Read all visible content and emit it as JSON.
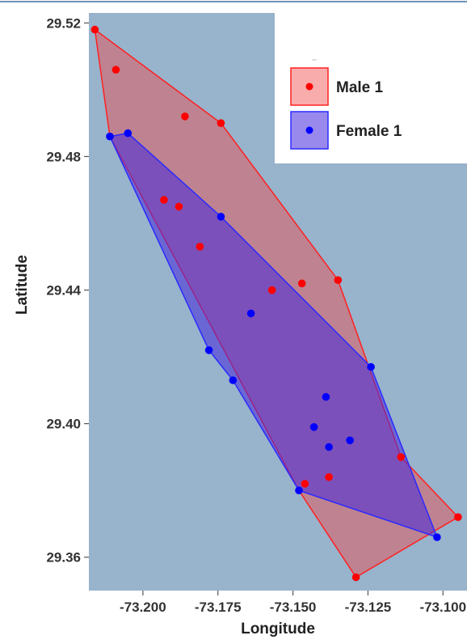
{
  "chart_data": {
    "type": "scatter",
    "xlabel": "Longitude",
    "ylabel": "Latitude",
    "xlim": [
      -73.218,
      -73.092
    ],
    "ylim": [
      29.35,
      29.523
    ],
    "x_ticks": [
      -73.2,
      -73.175,
      -73.15,
      -73.125,
      -73.1
    ],
    "x_tick_labels": [
      "-73.200",
      "-73.175",
      "-73.150",
      "-73.125",
      "-73.100"
    ],
    "y_ticks": [
      29.36,
      29.4,
      29.44,
      29.48,
      29.52
    ],
    "y_tick_labels": [
      "29.36",
      "29.40",
      "29.44",
      "29.48",
      "29.52"
    ],
    "grid": false,
    "legend_position": "top-right",
    "colors": {
      "panel_background": "#98b3cc",
      "male_point": "#ff0000",
      "male_hull_fill": "rgba(240,70,70,0.45)",
      "male_hull_stroke": "#ff2020",
      "female_point": "#0000ff",
      "female_hull_fill": "rgba(70,40,220,0.55)",
      "female_hull_stroke": "#2a2aff"
    },
    "series": [
      {
        "name": "Male 1",
        "color": "#ff0000",
        "points": [
          [
            -73.216,
            29.518
          ],
          [
            -73.209,
            29.506
          ],
          [
            -73.186,
            29.492
          ],
          [
            -73.174,
            29.49
          ],
          [
            -73.193,
            29.467
          ],
          [
            -73.188,
            29.465
          ],
          [
            -73.181,
            29.453
          ],
          [
            -73.157,
            29.44
          ],
          [
            -73.147,
            29.442
          ],
          [
            -73.135,
            29.443
          ],
          [
            -73.146,
            29.382
          ],
          [
            -73.138,
            29.384
          ],
          [
            -73.114,
            29.39
          ],
          [
            -73.095,
            29.372
          ],
          [
            -73.129,
            29.354
          ]
        ],
        "hull": [
          [
            -73.216,
            29.518
          ],
          [
            -73.174,
            29.49
          ],
          [
            -73.135,
            29.443
          ],
          [
            -73.114,
            29.39
          ],
          [
            -73.095,
            29.372
          ],
          [
            -73.129,
            29.354
          ],
          [
            -73.148,
            29.38
          ],
          [
            -73.211,
            29.486
          ]
        ]
      },
      {
        "name": "Female 1",
        "color": "#0000ff",
        "points": [
          [
            -73.211,
            29.486
          ],
          [
            -73.205,
            29.487
          ],
          [
            -73.174,
            29.462
          ],
          [
            -73.164,
            29.433
          ],
          [
            -73.178,
            29.422
          ],
          [
            -73.17,
            29.413
          ],
          [
            -73.124,
            29.417
          ],
          [
            -73.139,
            29.408
          ],
          [
            -73.143,
            29.399
          ],
          [
            -73.138,
            29.393
          ],
          [
            -73.131,
            29.395
          ],
          [
            -73.148,
            29.38
          ],
          [
            -73.102,
            29.366
          ]
        ],
        "hull": [
          [
            -73.211,
            29.486
          ],
          [
            -73.205,
            29.487
          ],
          [
            -73.174,
            29.462
          ],
          [
            -73.124,
            29.417
          ],
          [
            -73.102,
            29.366
          ],
          [
            -73.148,
            29.38
          ],
          [
            -73.17,
            29.413
          ],
          [
            -73.178,
            29.422
          ]
        ]
      }
    ]
  }
}
